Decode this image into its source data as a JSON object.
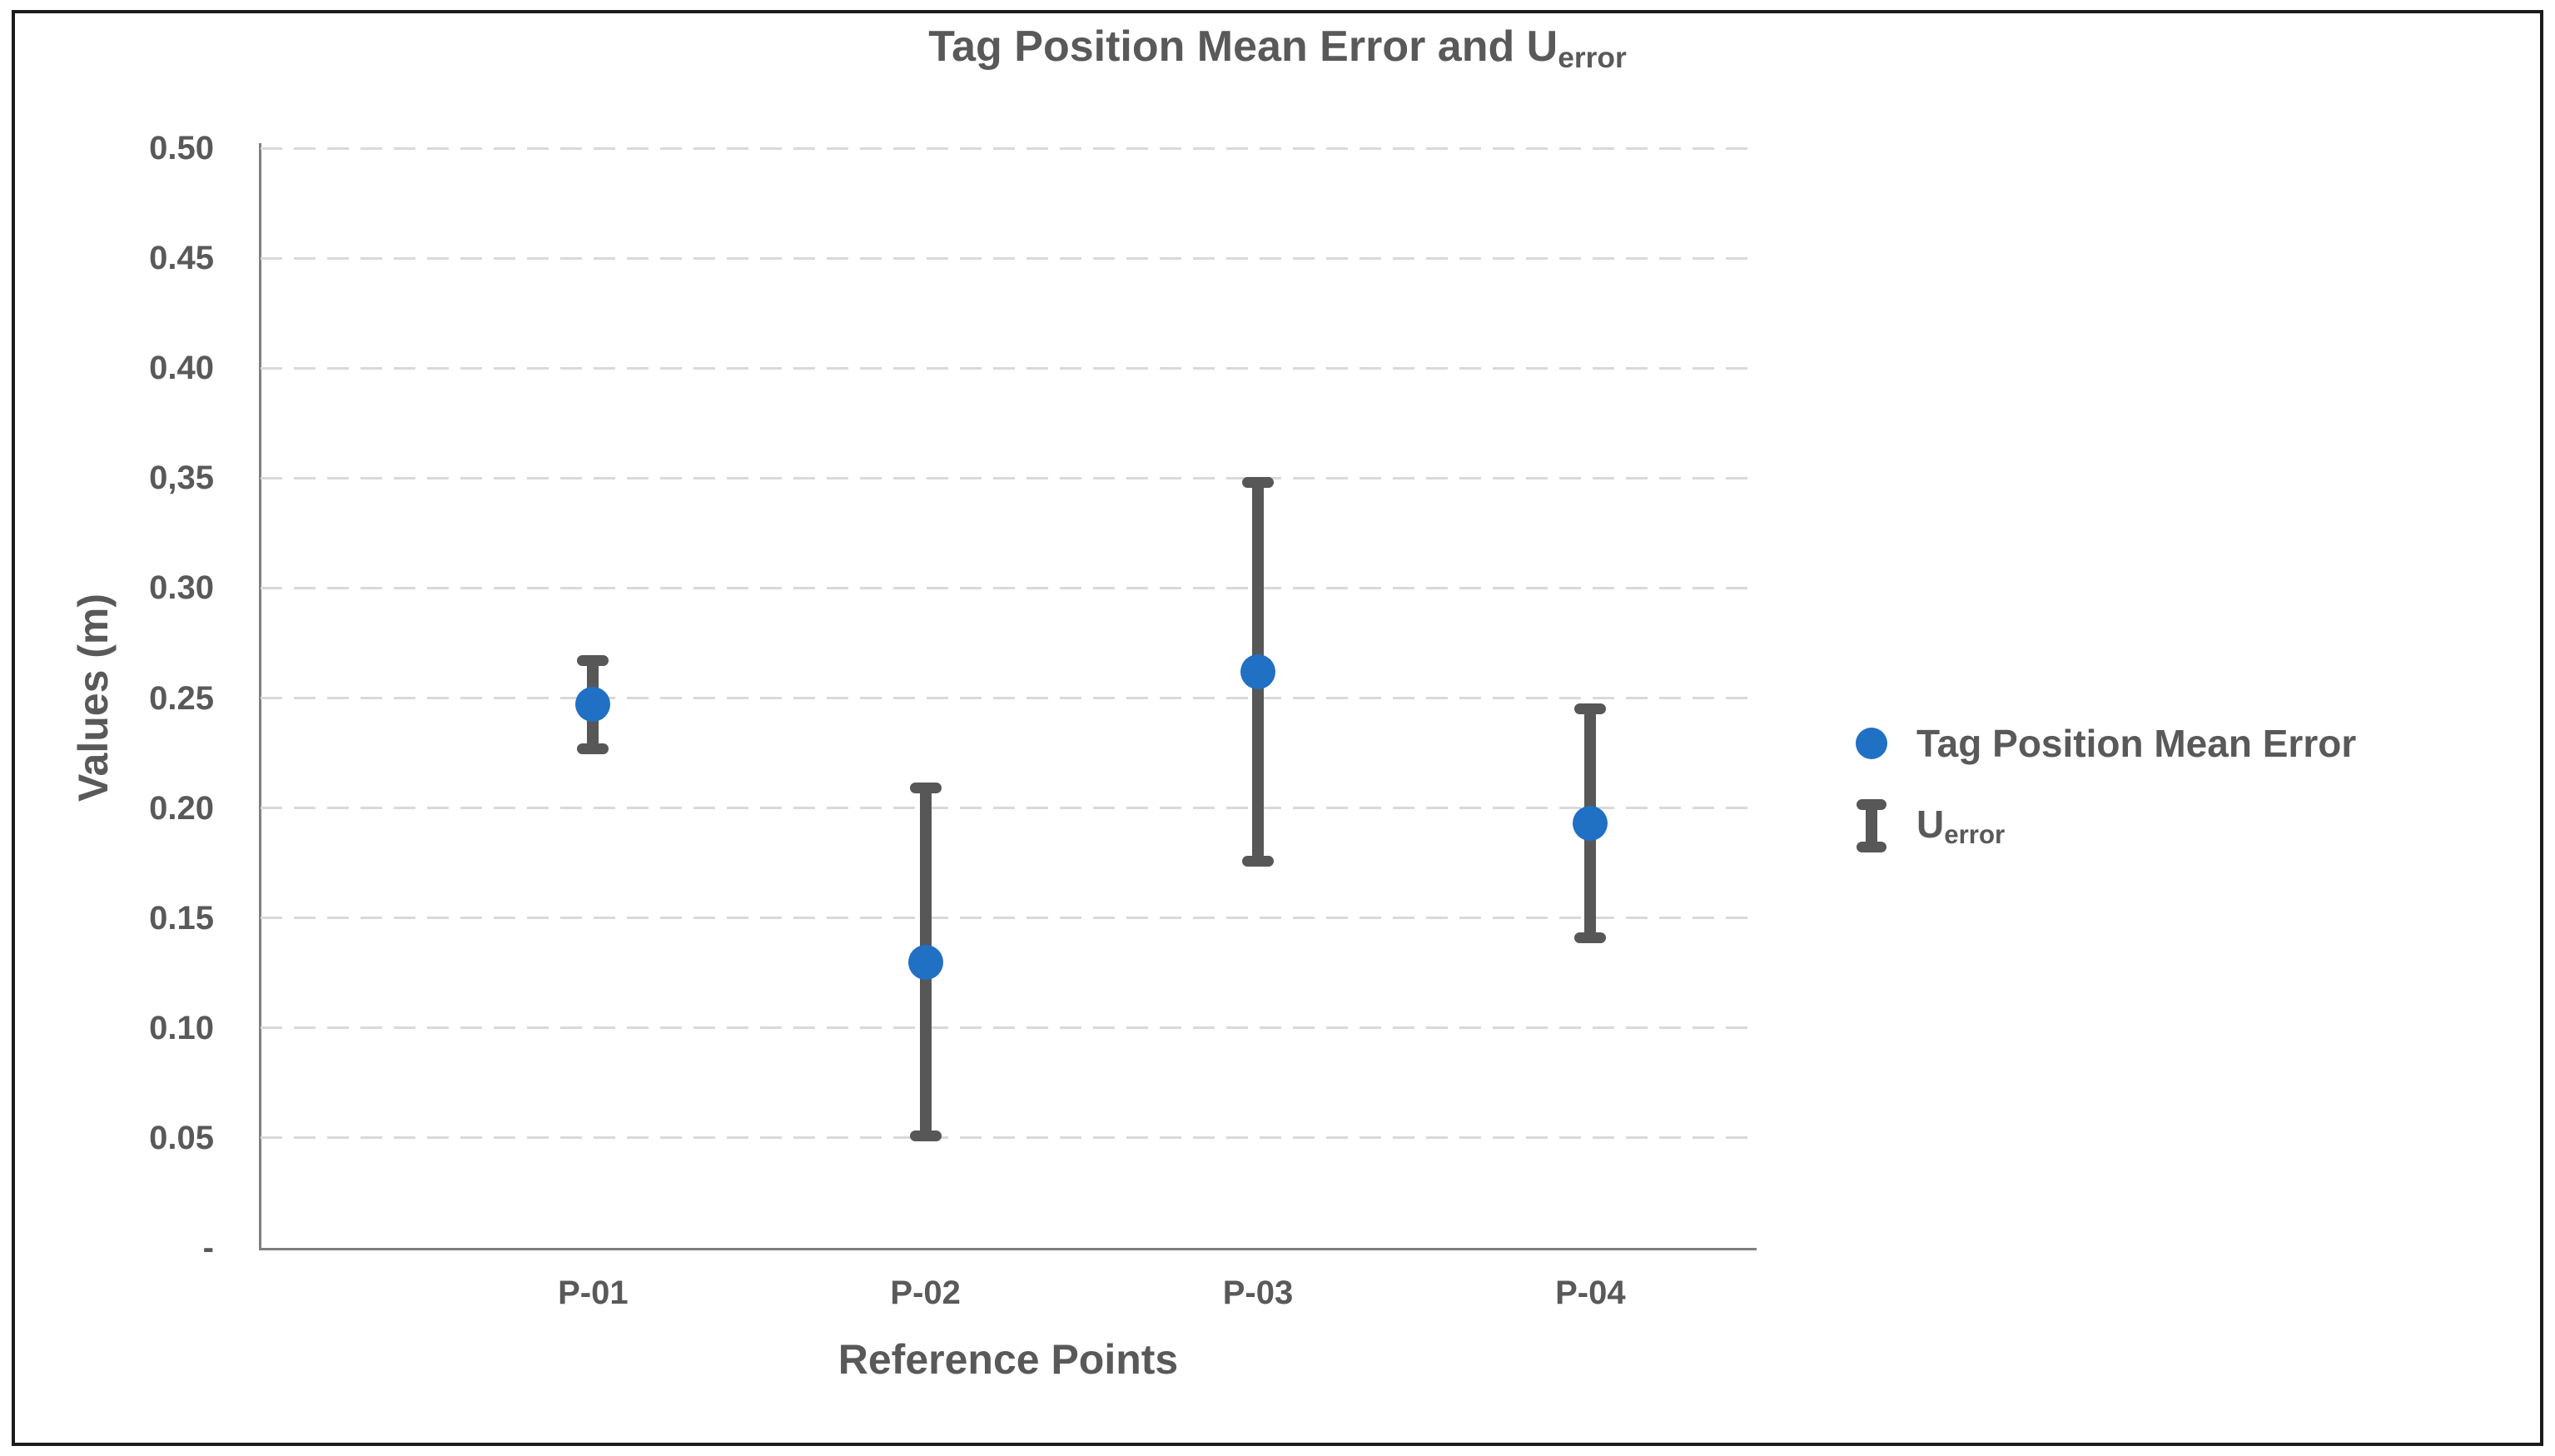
{
  "figure": {
    "title": {
      "text_main": "Tag Position Mean Error and U",
      "text_sub": "error"
    }
  },
  "axes": {
    "y": {
      "label": "Values (m)",
      "min": 0,
      "max": 0.5,
      "tick_step": 0.05,
      "tick_labels": [
        "0.50",
        "0.45",
        "0.40",
        "0,35",
        "0.30",
        "0.25",
        "0.20",
        "0.15",
        "0.10",
        "0.05",
        "-"
      ]
    },
    "x": {
      "label": "Reference Points",
      "tick_labels": [
        "P-01",
        "P-02",
        "P-03",
        "P-04"
      ]
    }
  },
  "legend": {
    "entries": [
      {
        "marker": "point-marker",
        "label": "Tag Position Mean Error"
      },
      {
        "marker": "error-bar-marker",
        "label_main": "U",
        "label_sub": "error"
      }
    ]
  },
  "colors": {
    "point_blue": "#2070C4",
    "error_bar_gray": "#575757",
    "text_gray": "#595959",
    "gridline_gray": "#D9D9D9",
    "axis_line_gray": "#7F7F7F"
  },
  "chart_data": {
    "type": "scatter",
    "categories": [
      "P-01",
      "P-02",
      "P-03",
      "P-04"
    ],
    "series": [
      {
        "name": "Tag Position Mean Error",
        "values": [
          0.247,
          0.13,
          0.262,
          0.193
        ]
      },
      {
        "name": "U_error",
        "kind": "error-bar",
        "plus_minus": [
          0.02,
          0.079,
          0.086,
          0.052
        ],
        "upper": [
          0.267,
          0.209,
          0.348,
          0.245
        ],
        "lower": [
          0.227,
          0.051,
          0.176,
          0.141
        ]
      }
    ],
    "title": "Tag Position Mean Error and U_error",
    "xlabel": "Reference Points",
    "ylabel": "Values (m)",
    "ylim": [
      0,
      0.5
    ],
    "ytick_interval": 0.05,
    "grid": "horizontal-dashed",
    "legend_position": "right"
  }
}
